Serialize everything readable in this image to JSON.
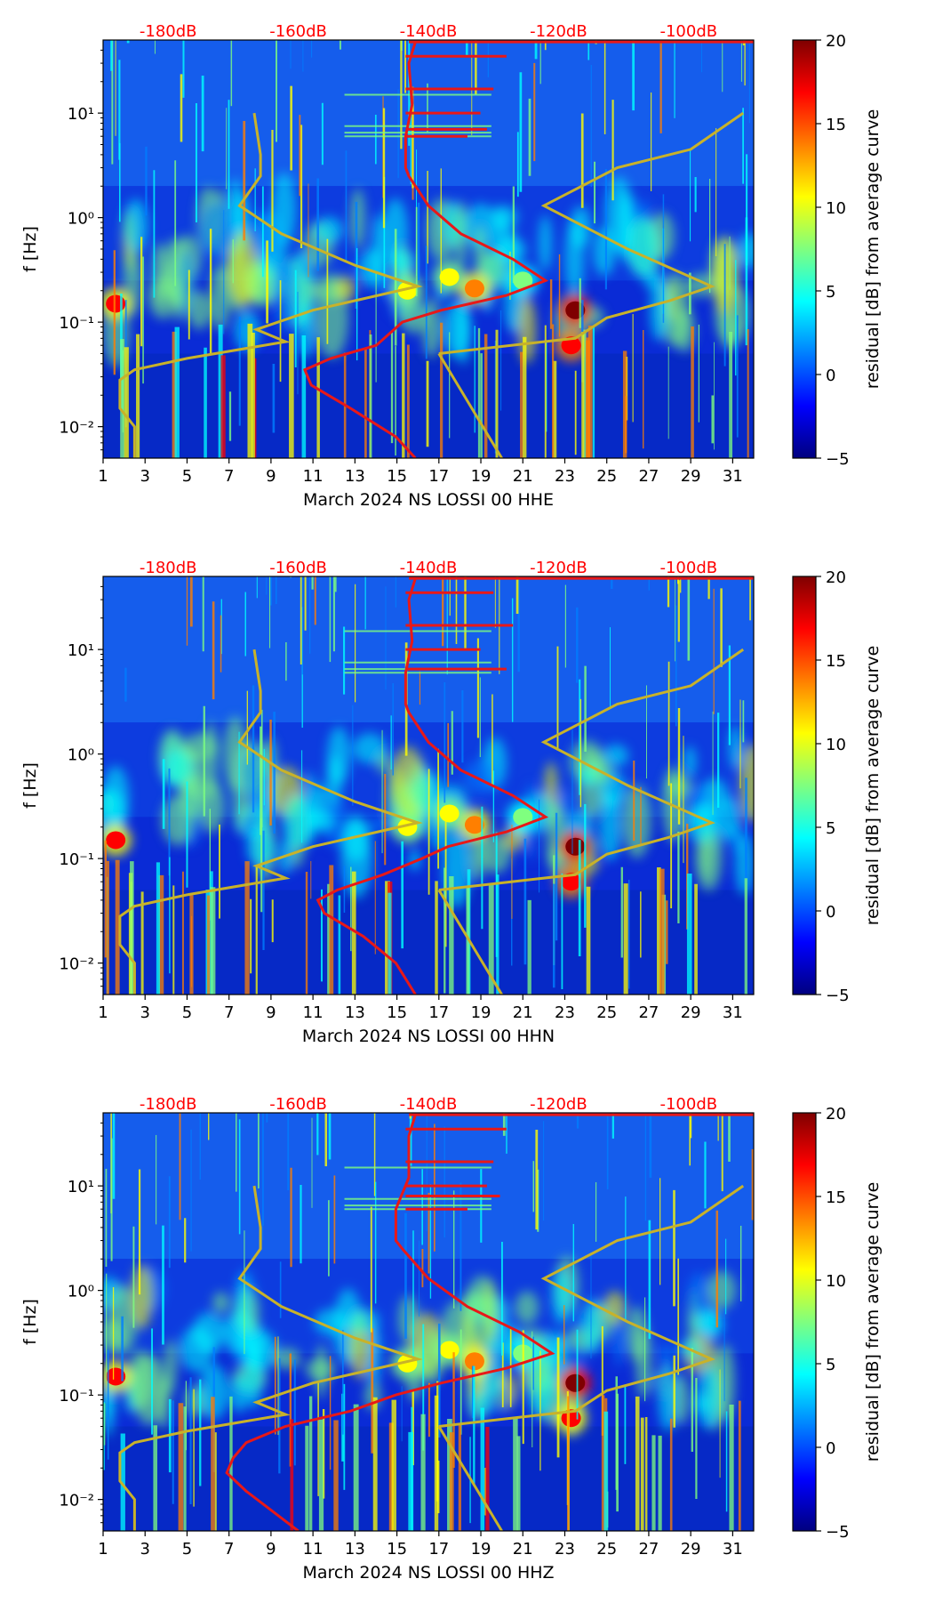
{
  "colors": {
    "top_scale_text": "#ff0000",
    "model_curve": "#c8b22a",
    "psd_curve": "#e81818",
    "colormap": [
      "#00007f",
      "#0000ff",
      "#007fff",
      "#00ffff",
      "#7fff7f",
      "#ffff00",
      "#ff7f00",
      "#ff0000",
      "#7f0000"
    ]
  },
  "colorbar": {
    "label": "residual [dB] from average curve",
    "ticks": [
      "20",
      "15",
      "10",
      "5",
      "0",
      "−5"
    ],
    "tick_values": [
      20,
      15,
      10,
      5,
      0,
      -5
    ],
    "range": [
      -5,
      20
    ]
  },
  "chart_data": [
    {
      "type": "heatmap",
      "channel": "HHE",
      "xlabel": "March 2024 NS LOSSI 00 HHE",
      "ylabel": "f [Hz]",
      "x_ticks": [
        "1",
        "3",
        "5",
        "7",
        "9",
        "11",
        "13",
        "15",
        "17",
        "19",
        "21",
        "23",
        "25",
        "27",
        "29",
        "31"
      ],
      "x_tick_values": [
        1,
        3,
        5,
        7,
        9,
        11,
        13,
        15,
        17,
        19,
        21,
        23,
        25,
        27,
        29,
        31
      ],
      "xlim": [
        1,
        32
      ],
      "y_ticks": [
        "10⁻²",
        "10⁻¹",
        "10⁰",
        "10¹"
      ],
      "y_tick_values": [
        0.01,
        0.1,
        1,
        10
      ],
      "ylim": [
        0.005,
        50
      ],
      "yscale": "log",
      "top_axis_labels": [
        "-180dB",
        "-160dB",
        "-140dB",
        "-120dB",
        "-100dB"
      ],
      "top_axis_values": [
        -180,
        -160,
        -140,
        -120,
        -100
      ],
      "top_axis_lim": [
        -190,
        -90
      ],
      "model_curve": [
        [
          8.2,
          10
        ],
        [
          8.5,
          4
        ],
        [
          8.5,
          2.5
        ],
        [
          7.5,
          1.3
        ],
        [
          9.5,
          0.7
        ],
        [
          13,
          0.35
        ],
        [
          16,
          0.22
        ],
        [
          11,
          0.13
        ],
        [
          8.3,
          0.085
        ],
        [
          9.7,
          0.065
        ],
        [
          5,
          0.045
        ],
        [
          2.5,
          0.035
        ],
        [
          1.8,
          0.028
        ],
        [
          1.8,
          0.015
        ],
        [
          2.5,
          0.01
        ],
        [
          2.5,
          0.005
        ]
      ],
      "model_curve_upper": [
        [
          17,
          0.05
        ],
        [
          22,
          0.065
        ],
        [
          23.5,
          0.07
        ],
        [
          25,
          0.11
        ],
        [
          28,
          0.16
        ],
        [
          30,
          0.22
        ],
        [
          26,
          0.5
        ],
        [
          22,
          1.3
        ],
        [
          25.5,
          3
        ],
        [
          29,
          4.5
        ],
        [
          31.5,
          10
        ]
      ],
      "model_curve_tail": [
        [
          17,
          0.05
        ],
        [
          20,
          0.005
        ]
      ],
      "psd_curve": [
        [
          -142,
          48
        ],
        [
          -143,
          30
        ],
        [
          -142.5,
          12
        ],
        [
          -143.5,
          6
        ],
        [
          -143.5,
          3
        ],
        [
          -143,
          2.5
        ],
        [
          -140,
          1.3
        ],
        [
          -135,
          0.7
        ],
        [
          -127,
          0.4
        ],
        [
          -122,
          0.25
        ],
        [
          -128,
          0.18
        ],
        [
          -138,
          0.13
        ],
        [
          -144,
          0.1
        ],
        [
          -148,
          0.06
        ],
        [
          -155,
          0.045
        ],
        [
          -159,
          0.035
        ],
        [
          -158,
          0.025
        ],
        [
          -152,
          0.015
        ],
        [
          -145,
          0.008
        ],
        [
          -142,
          0.005
        ]
      ],
      "psd_spikes": [
        [
          -128,
          35
        ],
        [
          -130,
          17
        ],
        [
          -132,
          10
        ],
        [
          -131,
          7
        ],
        [
          -134,
          6
        ]
      ],
      "hotspots": [
        {
          "day": 23.5,
          "f": 0.13,
          "level": 20
        },
        {
          "day": 23.3,
          "f": 0.06,
          "level": 18
        },
        {
          "day": 18.7,
          "f": 0.21,
          "level": 15
        },
        {
          "day": 15.5,
          "f": 0.2,
          "level": 12
        },
        {
          "day": 1.6,
          "f": 0.15,
          "level": 16
        },
        {
          "day": 17.5,
          "f": 0.27,
          "level": 10
        },
        {
          "day": 21,
          "f": 0.25,
          "level": 9
        }
      ]
    },
    {
      "type": "heatmap",
      "channel": "HHN",
      "xlabel": "March 2024 NS LOSSI 00 HHN",
      "ylabel": "f [Hz]",
      "x_ticks": [
        "1",
        "3",
        "5",
        "7",
        "9",
        "11",
        "13",
        "15",
        "17",
        "19",
        "21",
        "23",
        "25",
        "27",
        "29",
        "31"
      ],
      "x_tick_values": [
        1,
        3,
        5,
        7,
        9,
        11,
        13,
        15,
        17,
        19,
        21,
        23,
        25,
        27,
        29,
        31
      ],
      "xlim": [
        1,
        32
      ],
      "y_ticks": [
        "10⁻²",
        "10⁻¹",
        "10⁰",
        "10¹"
      ],
      "y_tick_values": [
        0.01,
        0.1,
        1,
        10
      ],
      "ylim": [
        0.005,
        50
      ],
      "yscale": "log",
      "top_axis_labels": [
        "-180dB",
        "-160dB",
        "-140dB",
        "-120dB",
        "-100dB"
      ],
      "top_axis_values": [
        -180,
        -160,
        -140,
        -120,
        -100
      ],
      "top_axis_lim": [
        -190,
        -90
      ],
      "model_curve": [
        [
          8.2,
          10
        ],
        [
          8.5,
          4
        ],
        [
          8.5,
          2.5
        ],
        [
          7.5,
          1.3
        ],
        [
          9.5,
          0.7
        ],
        [
          13,
          0.35
        ],
        [
          16,
          0.22
        ],
        [
          11,
          0.13
        ],
        [
          8.3,
          0.085
        ],
        [
          9.7,
          0.065
        ],
        [
          5,
          0.045
        ],
        [
          2.5,
          0.035
        ],
        [
          1.8,
          0.028
        ],
        [
          1.8,
          0.015
        ],
        [
          2.5,
          0.01
        ],
        [
          2.5,
          0.005
        ]
      ],
      "model_curve_upper": [
        [
          17,
          0.05
        ],
        [
          22,
          0.065
        ],
        [
          23.5,
          0.07
        ],
        [
          25,
          0.11
        ],
        [
          28,
          0.16
        ],
        [
          30,
          0.22
        ],
        [
          26,
          0.5
        ],
        [
          22,
          1.3
        ],
        [
          25.5,
          3
        ],
        [
          29,
          4.5
        ],
        [
          31.5,
          10
        ]
      ],
      "model_curve_tail": [
        [
          17,
          0.05
        ],
        [
          20,
          0.005
        ]
      ],
      "psd_curve": [
        [
          -142,
          48
        ],
        [
          -143,
          30
        ],
        [
          -142.5,
          12
        ],
        [
          -143.5,
          6
        ],
        [
          -143.5,
          3
        ],
        [
          -143,
          2.5
        ],
        [
          -140,
          1.3
        ],
        [
          -135,
          0.7
        ],
        [
          -127,
          0.4
        ],
        [
          -122,
          0.25
        ],
        [
          -128,
          0.18
        ],
        [
          -137,
          0.13
        ],
        [
          -141,
          0.1
        ],
        [
          -147,
          0.07
        ],
        [
          -154,
          0.05
        ],
        [
          -157,
          0.04
        ],
        [
          -156,
          0.03
        ],
        [
          -150,
          0.018
        ],
        [
          -145,
          0.01
        ],
        [
          -142,
          0.005
        ]
      ],
      "psd_spikes": [
        [
          -130,
          35
        ],
        [
          -127,
          17
        ],
        [
          -132,
          10
        ],
        [
          -128,
          6.5
        ]
      ],
      "hotspots": [
        {
          "day": 23.5,
          "f": 0.13,
          "level": 20
        },
        {
          "day": 23.3,
          "f": 0.06,
          "level": 17
        },
        {
          "day": 18.7,
          "f": 0.21,
          "level": 15
        },
        {
          "day": 15.5,
          "f": 0.2,
          "level": 12
        },
        {
          "day": 1.6,
          "f": 0.15,
          "level": 16
        },
        {
          "day": 17.5,
          "f": 0.27,
          "level": 10
        },
        {
          "day": 21,
          "f": 0.25,
          "level": 9
        }
      ]
    },
    {
      "type": "heatmap",
      "channel": "HHZ",
      "xlabel": "March 2024 NS LOSSI 00 HHZ",
      "ylabel": "f [Hz]",
      "x_ticks": [
        "1",
        "3",
        "5",
        "7",
        "9",
        "11",
        "13",
        "15",
        "17",
        "19",
        "21",
        "23",
        "25",
        "27",
        "29",
        "31"
      ],
      "x_tick_values": [
        1,
        3,
        5,
        7,
        9,
        11,
        13,
        15,
        17,
        19,
        21,
        23,
        25,
        27,
        29,
        31
      ],
      "xlim": [
        1,
        32
      ],
      "y_ticks": [
        "10⁻²",
        "10⁻¹",
        "10⁰",
        "10¹"
      ],
      "y_tick_values": [
        0.01,
        0.1,
        1,
        10
      ],
      "ylim": [
        0.005,
        50
      ],
      "yscale": "log",
      "top_axis_labels": [
        "-180dB",
        "-160dB",
        "-140dB",
        "-120dB",
        "-100dB"
      ],
      "top_axis_values": [
        -180,
        -160,
        -140,
        -120,
        -100
      ],
      "top_axis_lim": [
        -190,
        -90
      ],
      "model_curve": [
        [
          8.2,
          10
        ],
        [
          8.5,
          4
        ],
        [
          8.5,
          2.5
        ],
        [
          7.5,
          1.3
        ],
        [
          9.5,
          0.7
        ],
        [
          13,
          0.35
        ],
        [
          16,
          0.22
        ],
        [
          11,
          0.13
        ],
        [
          8.3,
          0.085
        ],
        [
          9.7,
          0.065
        ],
        [
          5,
          0.045
        ],
        [
          2.5,
          0.035
        ],
        [
          1.8,
          0.028
        ],
        [
          1.8,
          0.015
        ],
        [
          2.5,
          0.01
        ],
        [
          2.5,
          0.005
        ]
      ],
      "model_curve_upper": [
        [
          17,
          0.05
        ],
        [
          22,
          0.065
        ],
        [
          23.5,
          0.07
        ],
        [
          25,
          0.11
        ],
        [
          28,
          0.16
        ],
        [
          30,
          0.22
        ],
        [
          26,
          0.5
        ],
        [
          22,
          1.3
        ],
        [
          25.5,
          3
        ],
        [
          29,
          4.5
        ],
        [
          31.5,
          10
        ]
      ],
      "model_curve_tail": [
        [
          17,
          0.05
        ],
        [
          20,
          0.005
        ]
      ],
      "psd_curve": [
        [
          -142,
          48
        ],
        [
          -143,
          30
        ],
        [
          -143,
          12
        ],
        [
          -145,
          6
        ],
        [
          -145,
          3
        ],
        [
          -144,
          2.5
        ],
        [
          -140,
          1.3
        ],
        [
          -134,
          0.7
        ],
        [
          -126,
          0.4
        ],
        [
          -121,
          0.25
        ],
        [
          -128,
          0.18
        ],
        [
          -138,
          0.13
        ],
        [
          -145,
          0.1
        ],
        [
          -152,
          0.07
        ],
        [
          -162,
          0.05
        ],
        [
          -168,
          0.035
        ],
        [
          -170,
          0.025
        ],
        [
          -171,
          0.018
        ],
        [
          -168,
          0.012
        ],
        [
          -160,
          0.005
        ]
      ],
      "psd_spikes": [
        [
          -128,
          35
        ],
        [
          -130,
          17
        ],
        [
          -131,
          10
        ],
        [
          -129,
          8
        ],
        [
          -134,
          6
        ]
      ],
      "hotspots": [
        {
          "day": 23.5,
          "f": 0.13,
          "level": 20
        },
        {
          "day": 23.3,
          "f": 0.06,
          "level": 16
        },
        {
          "day": 18.7,
          "f": 0.21,
          "level": 15
        },
        {
          "day": 15.5,
          "f": 0.2,
          "level": 12
        },
        {
          "day": 1.6,
          "f": 0.15,
          "level": 16
        },
        {
          "day": 17.5,
          "f": 0.27,
          "level": 10
        },
        {
          "day": 21,
          "f": 0.25,
          "level": 9
        }
      ]
    }
  ]
}
